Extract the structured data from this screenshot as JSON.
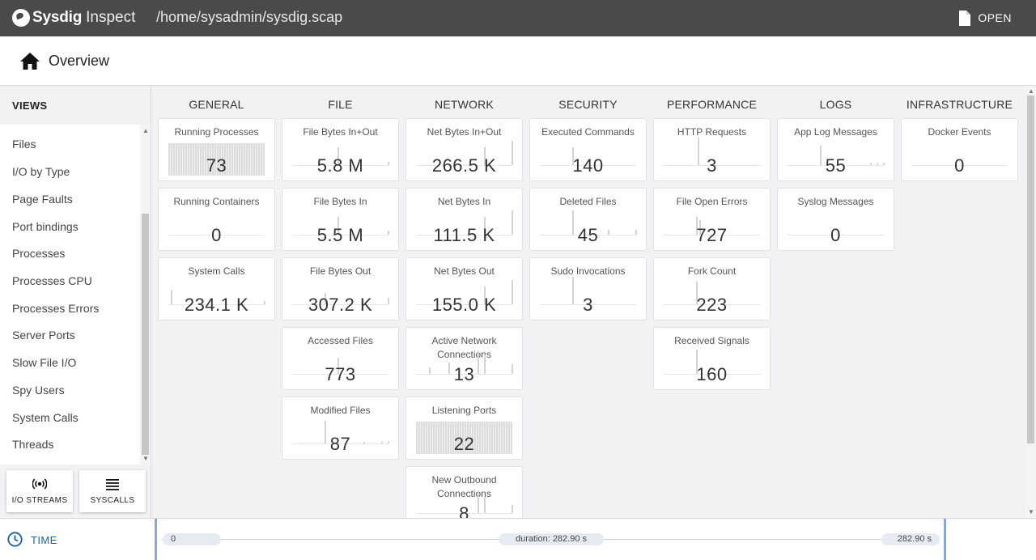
{
  "app": {
    "brand": "Sysdig",
    "product": "Inspect",
    "file_path": "/home/sysadmin/sysdig.scap",
    "open_label": "OPEN"
  },
  "overview": {
    "title": "Overview"
  },
  "sidebar": {
    "heading": "VIEWS",
    "items": [
      "Files",
      "I/O by Type",
      "Page Faults",
      "Port bindings",
      "Processes",
      "Processes CPU",
      "Processes Errors",
      "Server Ports",
      "Slow File I/O",
      "Spy Users",
      "System Calls",
      "Threads"
    ],
    "buttons": {
      "io_streams": "I/O STREAMS",
      "syscalls": "SYSCALLS"
    }
  },
  "columns": [
    "GENERAL",
    "FILE",
    "NETWORK",
    "SECURITY",
    "PERFORMANCE",
    "LOGS",
    "INFRASTRUCTURE"
  ],
  "tiles": {
    "general": [
      {
        "title": "Running Processes",
        "value": "73"
      },
      {
        "title": "Running Containers",
        "value": "0"
      },
      {
        "title": "System Calls",
        "value": "234.1 K"
      }
    ],
    "file": [
      {
        "title": "File Bytes In+Out",
        "value": "5.8 M"
      },
      {
        "title": "File Bytes In",
        "value": "5.5 M"
      },
      {
        "title": "File Bytes Out",
        "value": "307.2 K"
      },
      {
        "title": "Accessed Files",
        "value": "773"
      },
      {
        "title": "Modified Files",
        "value": "87"
      }
    ],
    "network": [
      {
        "title": "Net Bytes In+Out",
        "value": "266.5 K"
      },
      {
        "title": "Net Bytes In",
        "value": "111.5 K"
      },
      {
        "title": "Net Bytes Out",
        "value": "155.0 K"
      },
      {
        "title": "Active Network Connections",
        "value": "13"
      },
      {
        "title": "Listening Ports",
        "value": "22"
      },
      {
        "title": "New Outbound Connections",
        "value": "8"
      }
    ],
    "security": [
      {
        "title": "Executed Commands",
        "value": "140"
      },
      {
        "title": "Deleted Files",
        "value": "45"
      },
      {
        "title": "Sudo Invocations",
        "value": "3"
      }
    ],
    "performance": [
      {
        "title": "HTTP Requests",
        "value": "3"
      },
      {
        "title": "File Open Errors",
        "value": "727"
      },
      {
        "title": "Fork Count",
        "value": "223"
      },
      {
        "title": "Received Signals",
        "value": "160"
      }
    ],
    "logs": [
      {
        "title": "App Log Messages",
        "value": "55"
      },
      {
        "title": "Syslog Messages",
        "value": "0"
      }
    ],
    "infrastructure": [
      {
        "title": "Docker Events",
        "value": "0"
      }
    ]
  },
  "timeline": {
    "label": "TIME",
    "start": "0",
    "duration": "duration: 282.90 s",
    "end": "282.90 s"
  },
  "colors": {
    "topbar": "#4a4a4d",
    "accent": "#1c5f9a",
    "handle": "#8aa7cf"
  }
}
